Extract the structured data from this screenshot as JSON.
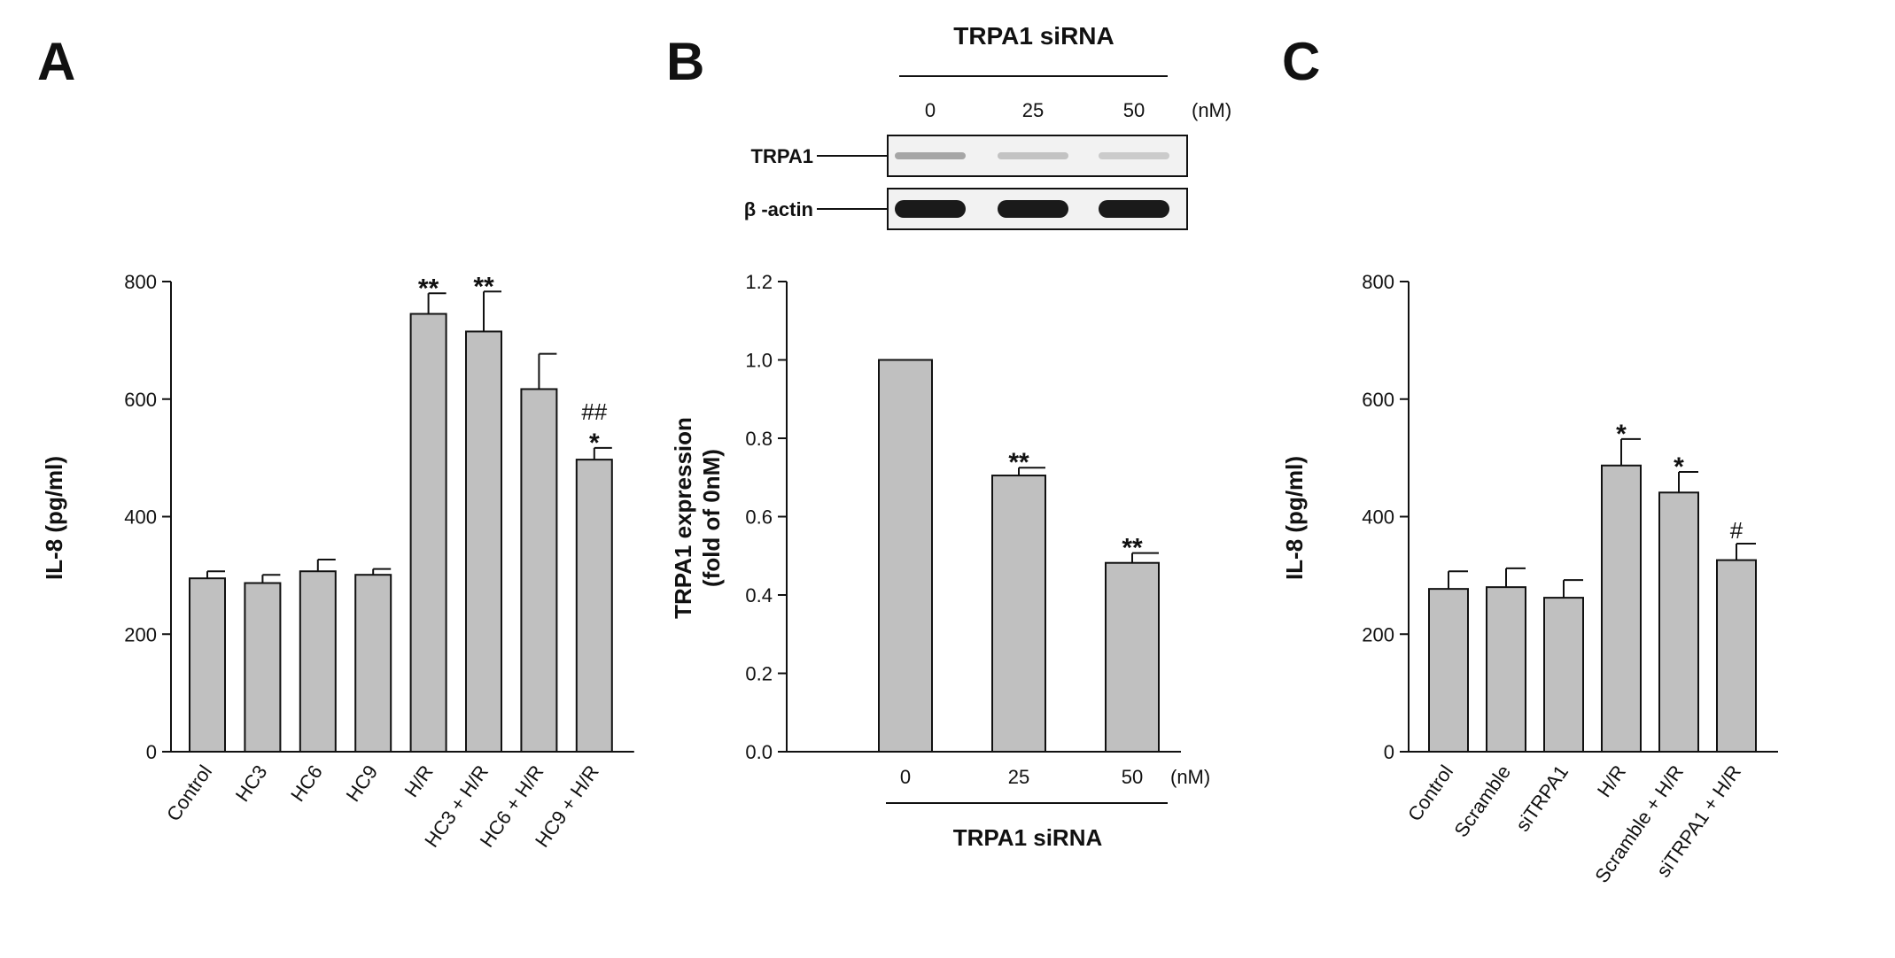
{
  "panels": {
    "a": "A",
    "b": "B",
    "c": "C"
  },
  "colors": {
    "bar_fill": "#c0c0c0",
    "bar_stroke": "#111111",
    "blot_band": "#1a1a1a",
    "blot_bg": "#f2f2f2"
  },
  "chart_data": [
    {
      "panel": "A",
      "type": "bar",
      "ylabel": "IL-8 (pg/ml)",
      "xlabel": "",
      "ylim": [
        0,
        800
      ],
      "yticks": [
        0,
        200,
        400,
        600,
        800
      ],
      "grid": false,
      "categories": [
        "Control",
        "HC3",
        "HC6",
        "HC9",
        "H/R",
        "HC3 + H/R",
        "HC6 + H/R",
        "HC9 + H/R"
      ],
      "values": [
        295,
        287,
        307,
        301,
        745,
        715,
        617,
        497
      ],
      "errors": [
        12,
        14,
        20,
        10,
        35,
        68,
        60,
        20
      ],
      "annotations": [
        {
          "category": "H/R",
          "lines": [
            "**"
          ]
        },
        {
          "category": "HC3 + H/R",
          "lines": [
            "**"
          ]
        },
        {
          "category": "HC9 + H/R",
          "lines": [
            "##",
            "*"
          ]
        }
      ]
    },
    {
      "panel": "B",
      "type": "bar",
      "ylabel": "TRPA1 expression (fold of 0nM)",
      "ylabel_lines": [
        "TRPA1 expression",
        "(fold of 0nM)"
      ],
      "xlabel": "TRPA1 siRNA",
      "x_unit": "(nM)",
      "ylim": [
        0,
        1.2
      ],
      "yticks": [
        "0.0",
        "0.2",
        "0.4",
        "0.6",
        "0.8",
        "1.0",
        "1.2"
      ],
      "grid": false,
      "categories": [
        "0",
        "25",
        "50"
      ],
      "values": [
        1.0,
        0.705,
        0.482
      ],
      "errors": [
        0,
        0.02,
        0.025
      ],
      "annotations": [
        {
          "category": "25",
          "lines": [
            "**"
          ]
        },
        {
          "category": "50",
          "lines": [
            "**"
          ]
        }
      ]
    },
    {
      "panel": "C",
      "type": "bar",
      "ylabel": "IL-8 (pg/ml)",
      "xlabel": "",
      "ylim": [
        0,
        800
      ],
      "yticks": [
        0,
        200,
        400,
        600,
        800
      ],
      "grid": false,
      "categories": [
        "Control",
        "Scramble",
        "siTRPA1",
        "H/R",
        "Scramble + H/R",
        "siTRPA1 + H/R"
      ],
      "values": [
        277,
        280,
        262,
        487,
        441,
        326
      ],
      "errors": [
        30,
        32,
        30,
        45,
        35,
        28
      ],
      "annotations": [
        {
          "category": "H/R",
          "lines": [
            "*"
          ]
        },
        {
          "category": "Scramble + H/R",
          "lines": [
            "*"
          ]
        },
        {
          "category": "siTRPA1 + H/R",
          "lines": [
            "#"
          ]
        }
      ]
    }
  ],
  "blot": {
    "header": "TRPA1 siRNA",
    "lanes": [
      "0",
      "25",
      "50"
    ],
    "unit": "(nM)",
    "rows": [
      {
        "label": "TRPA1",
        "intensity": [
          0.35,
          0.22,
          0.18
        ]
      },
      {
        "label": "β -actin",
        "intensity": [
          1.0,
          1.0,
          1.0
        ]
      }
    ]
  }
}
